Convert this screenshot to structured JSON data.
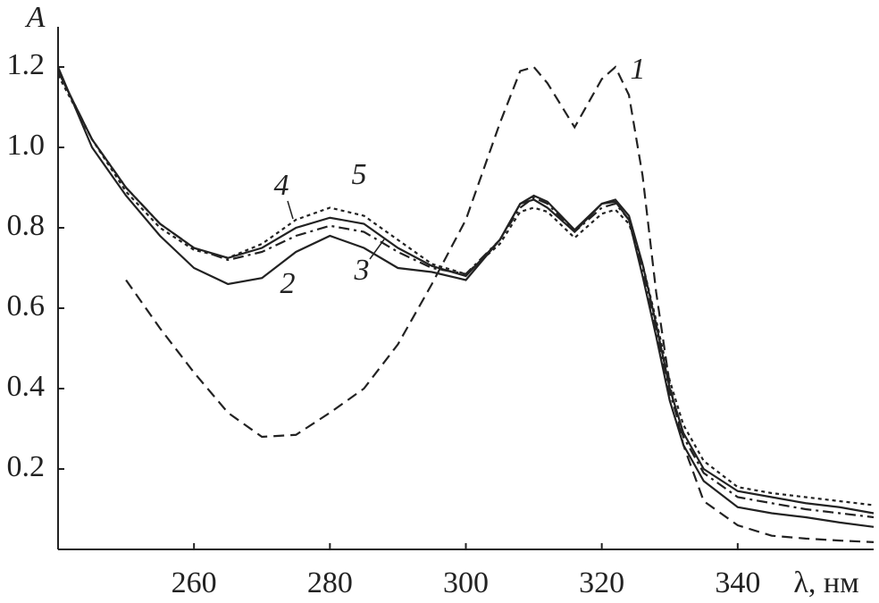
{
  "chart_data": {
    "type": "line",
    "y_label": "A",
    "x_label": "λ, нм",
    "xlim": [
      240,
      360
    ],
    "xticks": [
      260,
      280,
      300,
      320,
      340
    ],
    "ylim": [
      0,
      1.3
    ],
    "yticks": [
      0.2,
      0.4,
      0.6,
      0.8,
      {
        "value": 1,
        "label": "1.0"
      },
      1.2
    ],
    "x": [
      240,
      245,
      250,
      255,
      260,
      265,
      270,
      275,
      280,
      285,
      290,
      295,
      300,
      305,
      308,
      310,
      312,
      316,
      320,
      322,
      324,
      326,
      328,
      330,
      332,
      335,
      340,
      345,
      350,
      355,
      360
    ],
    "series": [
      {
        "name": "1",
        "color": "#222",
        "dash": "dashed",
        "values": [
          null,
          null,
          0.67,
          0.55,
          0.44,
          0.34,
          0.28,
          0.285,
          0.34,
          0.4,
          0.51,
          0.66,
          0.82,
          1.06,
          1.19,
          1.2,
          1.16,
          1.05,
          1.17,
          1.2,
          1.13,
          0.93,
          0.64,
          0.41,
          0.26,
          0.12,
          0.06,
          0.034,
          0.027,
          0.022,
          0.018
        ]
      },
      {
        "name": "2",
        "color": "#222",
        "dash": "solid",
        "values": [
          1.2,
          1.0,
          0.88,
          0.78,
          0.7,
          0.66,
          0.675,
          0.74,
          0.78,
          0.75,
          0.7,
          0.69,
          0.67,
          0.77,
          0.86,
          0.87,
          0.85,
          0.79,
          0.86,
          0.865,
          0.82,
          0.68,
          0.53,
          0.37,
          0.26,
          0.17,
          0.105,
          0.09,
          0.08,
          0.067,
          0.056
        ]
      },
      {
        "name": "3",
        "color": "#222",
        "dash": "dashdot",
        "values": [
          1.19,
          1.02,
          0.9,
          0.81,
          0.75,
          0.72,
          0.74,
          0.78,
          0.805,
          0.79,
          0.74,
          0.7,
          0.685,
          0.77,
          0.85,
          0.875,
          0.86,
          0.79,
          0.85,
          0.86,
          0.82,
          0.7,
          0.55,
          0.39,
          0.28,
          0.19,
          0.13,
          0.115,
          0.1,
          0.09,
          0.08
        ]
      },
      {
        "name": "4",
        "color": "#222",
        "dash": "solid",
        "values": [
          1.19,
          1.02,
          0.9,
          0.81,
          0.75,
          0.725,
          0.75,
          0.8,
          0.825,
          0.81,
          0.75,
          0.705,
          0.68,
          0.77,
          0.86,
          0.88,
          0.865,
          0.795,
          0.86,
          0.87,
          0.83,
          0.71,
          0.56,
          0.4,
          0.29,
          0.2,
          0.145,
          0.13,
          0.115,
          0.105,
          0.09
        ]
      },
      {
        "name": "5",
        "color": "#222",
        "dash": "dotted",
        "values": [
          1.18,
          1.02,
          0.89,
          0.8,
          0.745,
          0.725,
          0.76,
          0.82,
          0.85,
          0.83,
          0.77,
          0.71,
          0.685,
          0.76,
          0.84,
          0.85,
          0.84,
          0.775,
          0.835,
          0.845,
          0.81,
          0.71,
          0.57,
          0.42,
          0.31,
          0.22,
          0.155,
          0.14,
          0.13,
          0.12,
          0.11
        ]
      }
    ]
  }
}
